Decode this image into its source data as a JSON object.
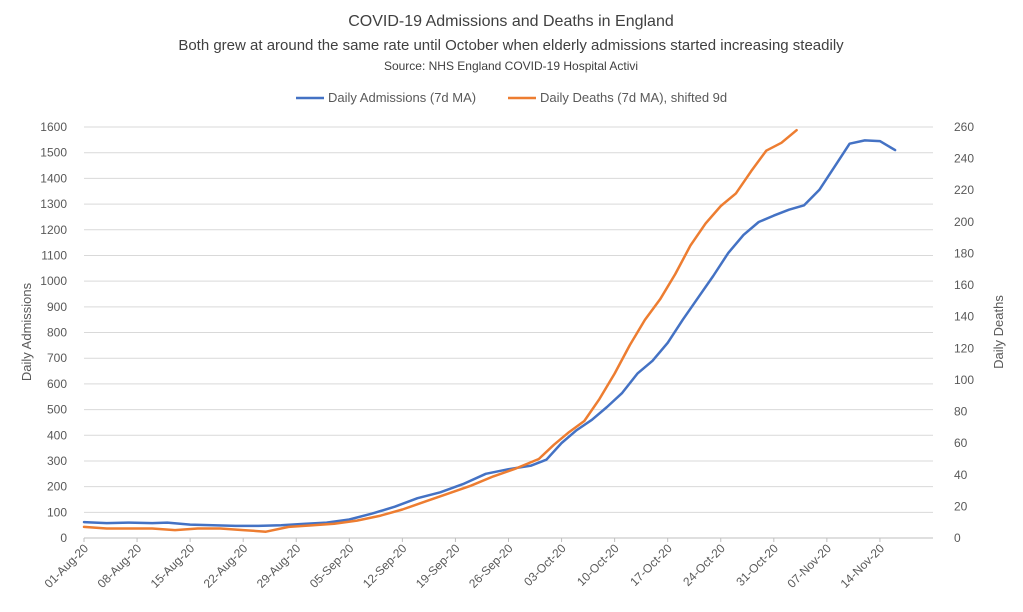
{
  "chart_data": {
    "type": "line",
    "title": "COVID-19 Admissions and Deaths in England",
    "subtitle": "Both grew at around the same rate until October when elderly admissions started increasing steadily",
    "source": "Source:  NHS England COVID-19 Hospital Activi",
    "ylabel_left": "Daily Admissions",
    "ylabel_right": "Daily Deaths",
    "ylim_left": [
      0,
      1600
    ],
    "ylim_right": [
      0,
      260
    ],
    "yticks_left": [
      0,
      100,
      200,
      300,
      400,
      500,
      600,
      700,
      800,
      900,
      1000,
      1100,
      1200,
      1300,
      1400,
      1500,
      1600
    ],
    "yticks_right": [
      0,
      20,
      40,
      60,
      80,
      100,
      120,
      140,
      160,
      180,
      200,
      220,
      240,
      260
    ],
    "x_start": "2020-08-01",
    "x_end": "2020-11-21",
    "x_tick_labels": [
      "01-Aug-20",
      "08-Aug-20",
      "15-Aug-20",
      "22-Aug-20",
      "29-Aug-20",
      "05-Sep-20",
      "12-Sep-20",
      "19-Sep-20",
      "26-Sep-20",
      "03-Oct-20",
      "10-Oct-20",
      "17-Oct-20",
      "24-Oct-20",
      "31-Oct-20",
      "07-Nov-20",
      "14-Nov-20"
    ],
    "grid": true,
    "legend_position": "top",
    "series": [
      {
        "name": "Daily Admissions (7d MA)",
        "color": "#4472C4",
        "axis": "left",
        "points": [
          [
            "2020-08-01",
            62
          ],
          [
            "2020-08-04",
            58
          ],
          [
            "2020-08-07",
            60
          ],
          [
            "2020-08-10",
            58
          ],
          [
            "2020-08-12",
            60
          ],
          [
            "2020-08-15",
            52
          ],
          [
            "2020-08-18",
            50
          ],
          [
            "2020-08-21",
            47
          ],
          [
            "2020-08-24",
            47
          ],
          [
            "2020-08-27",
            50
          ],
          [
            "2020-08-30",
            55
          ],
          [
            "2020-09-02",
            60
          ],
          [
            "2020-09-05",
            72
          ],
          [
            "2020-09-08",
            95
          ],
          [
            "2020-09-11",
            122
          ],
          [
            "2020-09-14",
            155
          ],
          [
            "2020-09-17",
            178
          ],
          [
            "2020-09-20",
            210
          ],
          [
            "2020-09-23",
            250
          ],
          [
            "2020-09-26",
            268
          ],
          [
            "2020-09-29",
            282
          ],
          [
            "2020-10-01",
            305
          ],
          [
            "2020-10-03",
            370
          ],
          [
            "2020-10-05",
            420
          ],
          [
            "2020-10-07",
            460
          ],
          [
            "2020-10-09",
            510
          ],
          [
            "2020-10-11",
            565
          ],
          [
            "2020-10-13",
            640
          ],
          [
            "2020-10-15",
            690
          ],
          [
            "2020-10-17",
            760
          ],
          [
            "2020-10-19",
            850
          ],
          [
            "2020-10-21",
            935
          ],
          [
            "2020-10-23",
            1020
          ],
          [
            "2020-10-25",
            1110
          ],
          [
            "2020-10-27",
            1180
          ],
          [
            "2020-10-29",
            1230
          ],
          [
            "2020-10-31",
            1255
          ],
          [
            "2020-11-02",
            1278
          ],
          [
            "2020-11-04",
            1295
          ],
          [
            "2020-11-06",
            1355
          ],
          [
            "2020-11-08",
            1445
          ],
          [
            "2020-11-10",
            1535
          ],
          [
            "2020-11-12",
            1548
          ],
          [
            "2020-11-14",
            1545
          ],
          [
            "2020-11-16",
            1510
          ]
        ]
      },
      {
        "name": "Daily Deaths (7d MA), shifted 9d",
        "color": "#ED7D31",
        "axis": "right",
        "points": [
          [
            "2020-08-01",
            7
          ],
          [
            "2020-08-04",
            6
          ],
          [
            "2020-08-07",
            6
          ],
          [
            "2020-08-10",
            6
          ],
          [
            "2020-08-13",
            5
          ],
          [
            "2020-08-16",
            6
          ],
          [
            "2020-08-19",
            6
          ],
          [
            "2020-08-22",
            5
          ],
          [
            "2020-08-25",
            4
          ],
          [
            "2020-08-28",
            7
          ],
          [
            "2020-08-31",
            8
          ],
          [
            "2020-09-03",
            9
          ],
          [
            "2020-09-06",
            11
          ],
          [
            "2020-09-09",
            14
          ],
          [
            "2020-09-12",
            18
          ],
          [
            "2020-09-15",
            23
          ],
          [
            "2020-09-18",
            28
          ],
          [
            "2020-09-21",
            33
          ],
          [
            "2020-09-24",
            39
          ],
          [
            "2020-09-27",
            44
          ],
          [
            "2020-09-30",
            50
          ],
          [
            "2020-10-02",
            59
          ],
          [
            "2020-10-04",
            67
          ],
          [
            "2020-10-06",
            74
          ],
          [
            "2020-10-08",
            88
          ],
          [
            "2020-10-10",
            104
          ],
          [
            "2020-10-12",
            122
          ],
          [
            "2020-10-14",
            138
          ],
          [
            "2020-10-16",
            151
          ],
          [
            "2020-10-18",
            167
          ],
          [
            "2020-10-20",
            185
          ],
          [
            "2020-10-22",
            199
          ],
          [
            "2020-10-24",
            210
          ],
          [
            "2020-10-26",
            218
          ],
          [
            "2020-10-28",
            232
          ],
          [
            "2020-10-30",
            245
          ],
          [
            "2020-11-01",
            250
          ],
          [
            "2020-11-03",
            258
          ]
        ]
      }
    ]
  }
}
